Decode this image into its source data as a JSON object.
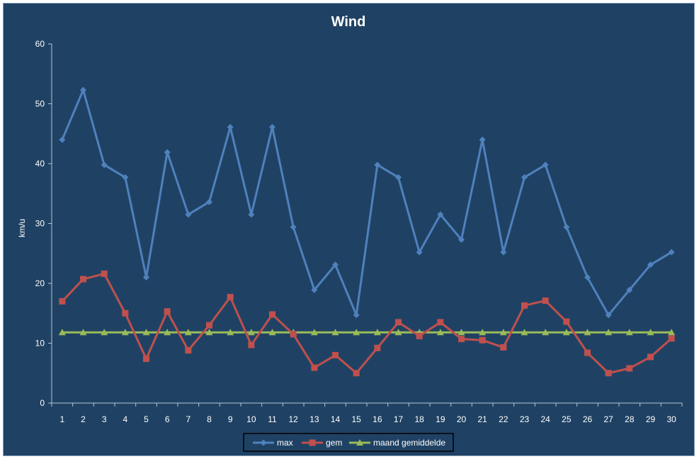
{
  "chart_data": {
    "type": "line",
    "title": "Wind",
    "xlabel": "",
    "ylabel": "km/u",
    "ylim": [
      0,
      60
    ],
    "yticks": [
      0,
      10,
      20,
      30,
      40,
      50,
      60
    ],
    "grid": false,
    "legend_position": "bottom",
    "x": [
      1,
      2,
      3,
      4,
      5,
      6,
      7,
      8,
      9,
      10,
      11,
      12,
      13,
      14,
      15,
      16,
      17,
      18,
      19,
      20,
      21,
      22,
      23,
      24,
      25,
      26,
      27,
      28,
      29,
      30
    ],
    "series": [
      {
        "name": "max",
        "color": "#4f81bd",
        "marker": "diamond",
        "values": [
          44,
          52.3,
          39.8,
          37.7,
          21,
          41.9,
          31.5,
          33.6,
          46.1,
          31.5,
          46.1,
          29.4,
          18.9,
          23.1,
          14.7,
          39.8,
          37.7,
          25.2,
          31.5,
          27.3,
          44,
          25.2,
          37.7,
          39.8,
          29.4,
          21,
          14.7,
          18.9,
          23.1,
          25.2
        ]
      },
      {
        "name": "gem",
        "color": "#c0504d",
        "marker": "square",
        "values": [
          17,
          20.7,
          21.6,
          15,
          7.4,
          15.3,
          8.8,
          13,
          17.7,
          9.7,
          14.8,
          11.5,
          5.9,
          8,
          5,
          9.2,
          13.5,
          11.2,
          13.5,
          10.7,
          10.5,
          9.3,
          16.3,
          17.1,
          13.6,
          8.4,
          5,
          5.8,
          7.7,
          10.8
        ]
      },
      {
        "name": "maand gemiddelde",
        "color": "#9bbb59",
        "marker": "triangle",
        "values": [
          11.8,
          11.8,
          11.8,
          11.8,
          11.8,
          11.8,
          11.8,
          11.8,
          11.8,
          11.8,
          11.8,
          11.8,
          11.8,
          11.8,
          11.8,
          11.8,
          11.8,
          11.8,
          11.8,
          11.8,
          11.8,
          11.8,
          11.8,
          11.8,
          11.8,
          11.8,
          11.8,
          11.8,
          11.8,
          11.8
        ]
      }
    ]
  }
}
